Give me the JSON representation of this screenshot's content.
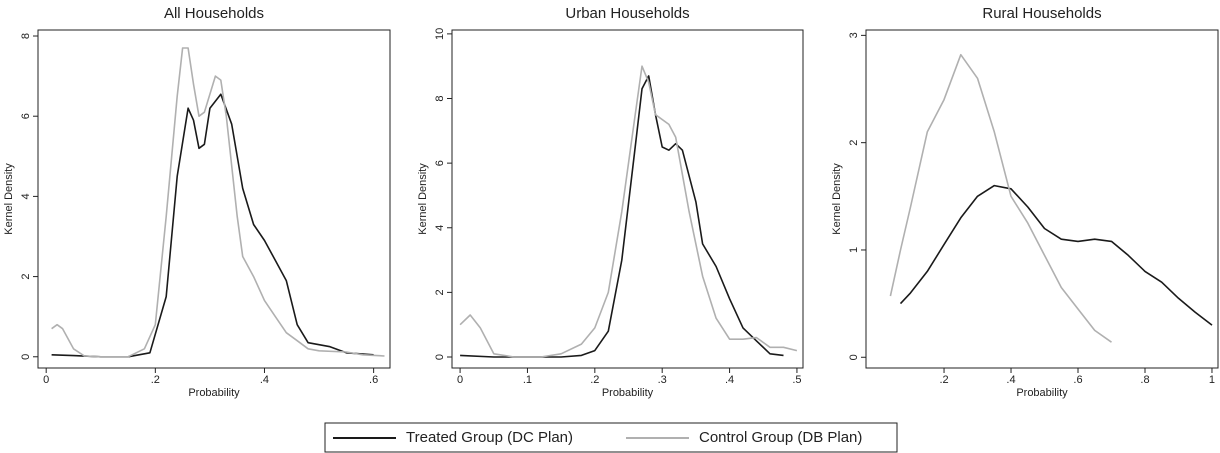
{
  "chart_data": [
    {
      "type": "line",
      "title": "All Households",
      "xlabel": "Probability",
      "ylabel": "Kernel Density",
      "xlim": [
        -0.015,
        0.63
      ],
      "ylim": [
        -0.28,
        8.15
      ],
      "xticks": [
        0,
        {
          "value": 0.2,
          "label": ".2"
        },
        {
          "value": 0.4,
          "label": ".4"
        },
        {
          "value": 0.6,
          "label": ".6"
        }
      ],
      "yticks": [
        0,
        2,
        4,
        6,
        8
      ],
      "series": [
        {
          "name": "Treated Group (DC Plan)",
          "color": "#1a1a1a",
          "x": [
            0.01,
            0.05,
            0.1,
            0.15,
            0.19,
            0.22,
            0.24,
            0.26,
            0.27,
            0.28,
            0.29,
            0.3,
            0.32,
            0.34,
            0.36,
            0.38,
            0.4,
            0.42,
            0.44,
            0.46,
            0.48,
            0.5,
            0.52,
            0.55,
            0.6
          ],
          "values": [
            0.05,
            0.03,
            0,
            0,
            0.1,
            1.5,
            4.5,
            6.2,
            5.9,
            5.2,
            5.3,
            6.2,
            6.55,
            5.8,
            4.2,
            3.3,
            2.9,
            2.4,
            1.9,
            0.8,
            0.35,
            0.3,
            0.25,
            0.1,
            0.05
          ]
        },
        {
          "name": "Control Group (DB Plan)",
          "color": "#b0b0b0",
          "x": [
            0.01,
            0.02,
            0.03,
            0.05,
            0.07,
            0.1,
            0.15,
            0.18,
            0.2,
            0.22,
            0.24,
            0.25,
            0.26,
            0.27,
            0.28,
            0.29,
            0.31,
            0.32,
            0.33,
            0.35,
            0.36,
            0.38,
            0.4,
            0.42,
            0.44,
            0.46,
            0.48,
            0.5,
            0.55,
            0.58,
            0.62
          ],
          "values": [
            0.7,
            0.8,
            0.7,
            0.2,
            0.02,
            0,
            0,
            0.2,
            0.8,
            3.5,
            6.5,
            7.7,
            7.7,
            6.8,
            6.0,
            6.1,
            7.0,
            6.9,
            6.0,
            3.5,
            2.5,
            2.0,
            1.4,
            1.0,
            0.6,
            0.4,
            0.2,
            0.15,
            0.12,
            0.05,
            0.02
          ]
        }
      ]
    },
    {
      "type": "line",
      "title": "Urban Households",
      "xlabel": "Probability",
      "ylabel": "Kernel Density",
      "xlim": [
        -0.012,
        0.509
      ],
      "ylim": [
        -0.34,
        10.12
      ],
      "xticks": [
        0,
        {
          "value": 0.1,
          "label": ".1"
        },
        {
          "value": 0.2,
          "label": ".2"
        },
        {
          "value": 0.3,
          "label": ".3"
        },
        {
          "value": 0.4,
          "label": ".4"
        },
        {
          "value": 0.5,
          "label": ".5"
        }
      ],
      "yticks": [
        0,
        2,
        4,
        6,
        8,
        10
      ],
      "series": [
        {
          "name": "Treated Group (DC Plan)",
          "color": "#1a1a1a",
          "x": [
            0,
            0.05,
            0.1,
            0.15,
            0.18,
            0.2,
            0.22,
            0.24,
            0.26,
            0.27,
            0.28,
            0.29,
            0.3,
            0.31,
            0.32,
            0.33,
            0.35,
            0.36,
            0.38,
            0.4,
            0.42,
            0.44,
            0.46,
            0.48
          ],
          "values": [
            0.05,
            0,
            0,
            0,
            0.05,
            0.2,
            0.8,
            3,
            6.5,
            8.3,
            8.7,
            7.5,
            6.5,
            6.4,
            6.6,
            6.4,
            4.8,
            3.5,
            2.8,
            1.8,
            0.9,
            0.5,
            0.1,
            0.05
          ]
        },
        {
          "name": "Control Group (DB Plan)",
          "color": "#b0b0b0",
          "x": [
            0,
            0.015,
            0.03,
            0.05,
            0.08,
            0.12,
            0.15,
            0.18,
            0.2,
            0.22,
            0.24,
            0.26,
            0.27,
            0.28,
            0.29,
            0.31,
            0.32,
            0.34,
            0.36,
            0.38,
            0.4,
            0.42,
            0.44,
            0.46,
            0.48,
            0.5
          ],
          "values": [
            1.0,
            1.3,
            0.9,
            0.1,
            0,
            0,
            0.1,
            0.4,
            0.9,
            2.0,
            4.5,
            7.5,
            9.0,
            8.5,
            7.5,
            7.2,
            6.8,
            4.5,
            2.5,
            1.2,
            0.55,
            0.55,
            0.6,
            0.3,
            0.3,
            0.2
          ]
        }
      ]
    },
    {
      "type": "line",
      "title": "Rural Households",
      "xlabel": "Probability",
      "ylabel": "Kernel Density",
      "xlim": [
        -0.033,
        1.018
      ],
      "ylim": [
        -0.1,
        3.05
      ],
      "xticks": [
        {
          "value": 0.2,
          "label": ".2"
        },
        {
          "value": 0.4,
          "label": ".4"
        },
        {
          "value": 0.6,
          "label": ".6"
        },
        {
          "value": 0.8,
          "label": ".8"
        },
        1
      ],
      "yticks": [
        0,
        1,
        2,
        3
      ],
      "series": [
        {
          "name": "Treated Group (DC Plan)",
          "color": "#1a1a1a",
          "x": [
            0.07,
            0.1,
            0.15,
            0.2,
            0.25,
            0.3,
            0.35,
            0.4,
            0.45,
            0.5,
            0.55,
            0.6,
            0.65,
            0.7,
            0.75,
            0.8,
            0.85,
            0.9,
            0.95,
            1.0
          ],
          "values": [
            0.5,
            0.6,
            0.8,
            1.05,
            1.3,
            1.5,
            1.6,
            1.57,
            1.4,
            1.2,
            1.1,
            1.08,
            1.1,
            1.08,
            0.95,
            0.8,
            0.7,
            0.55,
            0.42,
            0.3
          ]
        },
        {
          "name": "Control Group (DB Plan)",
          "color": "#b0b0b0",
          "x": [
            0.04,
            0.07,
            0.1,
            0.15,
            0.2,
            0.25,
            0.3,
            0.35,
            0.4,
            0.45,
            0.5,
            0.55,
            0.6,
            0.65,
            0.7
          ],
          "values": [
            0.57,
            1.0,
            1.4,
            2.1,
            2.4,
            2.82,
            2.6,
            2.1,
            1.5,
            1.25,
            0.95,
            0.65,
            0.45,
            0.25,
            0.14
          ]
        }
      ]
    }
  ]
}
